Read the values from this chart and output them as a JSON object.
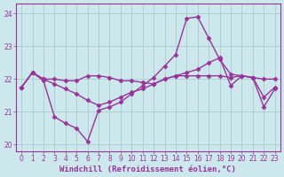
{
  "xlabel": "Windchill (Refroidissement éolien,°C)",
  "bg_color": "#cce8ec",
  "grid_color": "#aacccc",
  "line_color": "#993399",
  "xlim": [
    -0.5,
    23.5
  ],
  "ylim": [
    19.8,
    24.3
  ],
  "xticks": [
    0,
    1,
    2,
    3,
    4,
    5,
    6,
    7,
    8,
    9,
    10,
    11,
    12,
    13,
    14,
    15,
    16,
    17,
    18,
    19,
    20,
    21,
    22,
    23
  ],
  "yticks": [
    20,
    21,
    22,
    23,
    24
  ],
  "line1_x": [
    0,
    1,
    2,
    3,
    4,
    5,
    6,
    7,
    8,
    9,
    10,
    11,
    12,
    13,
    14,
    15,
    16,
    17,
    18,
    19,
    20,
    21,
    22,
    23
  ],
  "line1_y": [
    21.75,
    22.2,
    21.95,
    20.85,
    20.65,
    20.5,
    20.1,
    21.05,
    21.15,
    21.3,
    21.55,
    21.8,
    22.05,
    22.4,
    22.75,
    23.85,
    23.9,
    23.25,
    22.6,
    22.15,
    22.1,
    22.05,
    21.15,
    21.7
  ],
  "line2_x": [
    0,
    1,
    2,
    3,
    4,
    5,
    6,
    7,
    8,
    9,
    10,
    11,
    12,
    13,
    14,
    15,
    16,
    17,
    18,
    19,
    20,
    21,
    22,
    23
  ],
  "line2_y": [
    21.75,
    22.2,
    22.0,
    22.0,
    21.95,
    21.95,
    22.1,
    22.1,
    22.05,
    21.95,
    21.95,
    21.9,
    21.85,
    22.0,
    22.1,
    22.1,
    22.1,
    22.1,
    22.1,
    22.05,
    22.1,
    22.05,
    22.0,
    22.0
  ],
  "line3_x": [
    0,
    1,
    2,
    3,
    4,
    5,
    6,
    7,
    8,
    9,
    10,
    11,
    12,
    13,
    14,
    15,
    16,
    17,
    18,
    19,
    20,
    21,
    22,
    23
  ],
  "line3_y": [
    21.75,
    22.2,
    22.0,
    21.85,
    21.7,
    21.55,
    21.35,
    21.2,
    21.3,
    21.45,
    21.6,
    21.7,
    21.85,
    22.0,
    22.1,
    22.2,
    22.3,
    22.5,
    22.65,
    21.8,
    22.1,
    22.05,
    21.45,
    21.75
  ],
  "marker": "D",
  "markersize": 2.5,
  "linewidth": 1.0,
  "tick_fontsize": 5.5,
  "xlabel_fontsize": 6.5
}
